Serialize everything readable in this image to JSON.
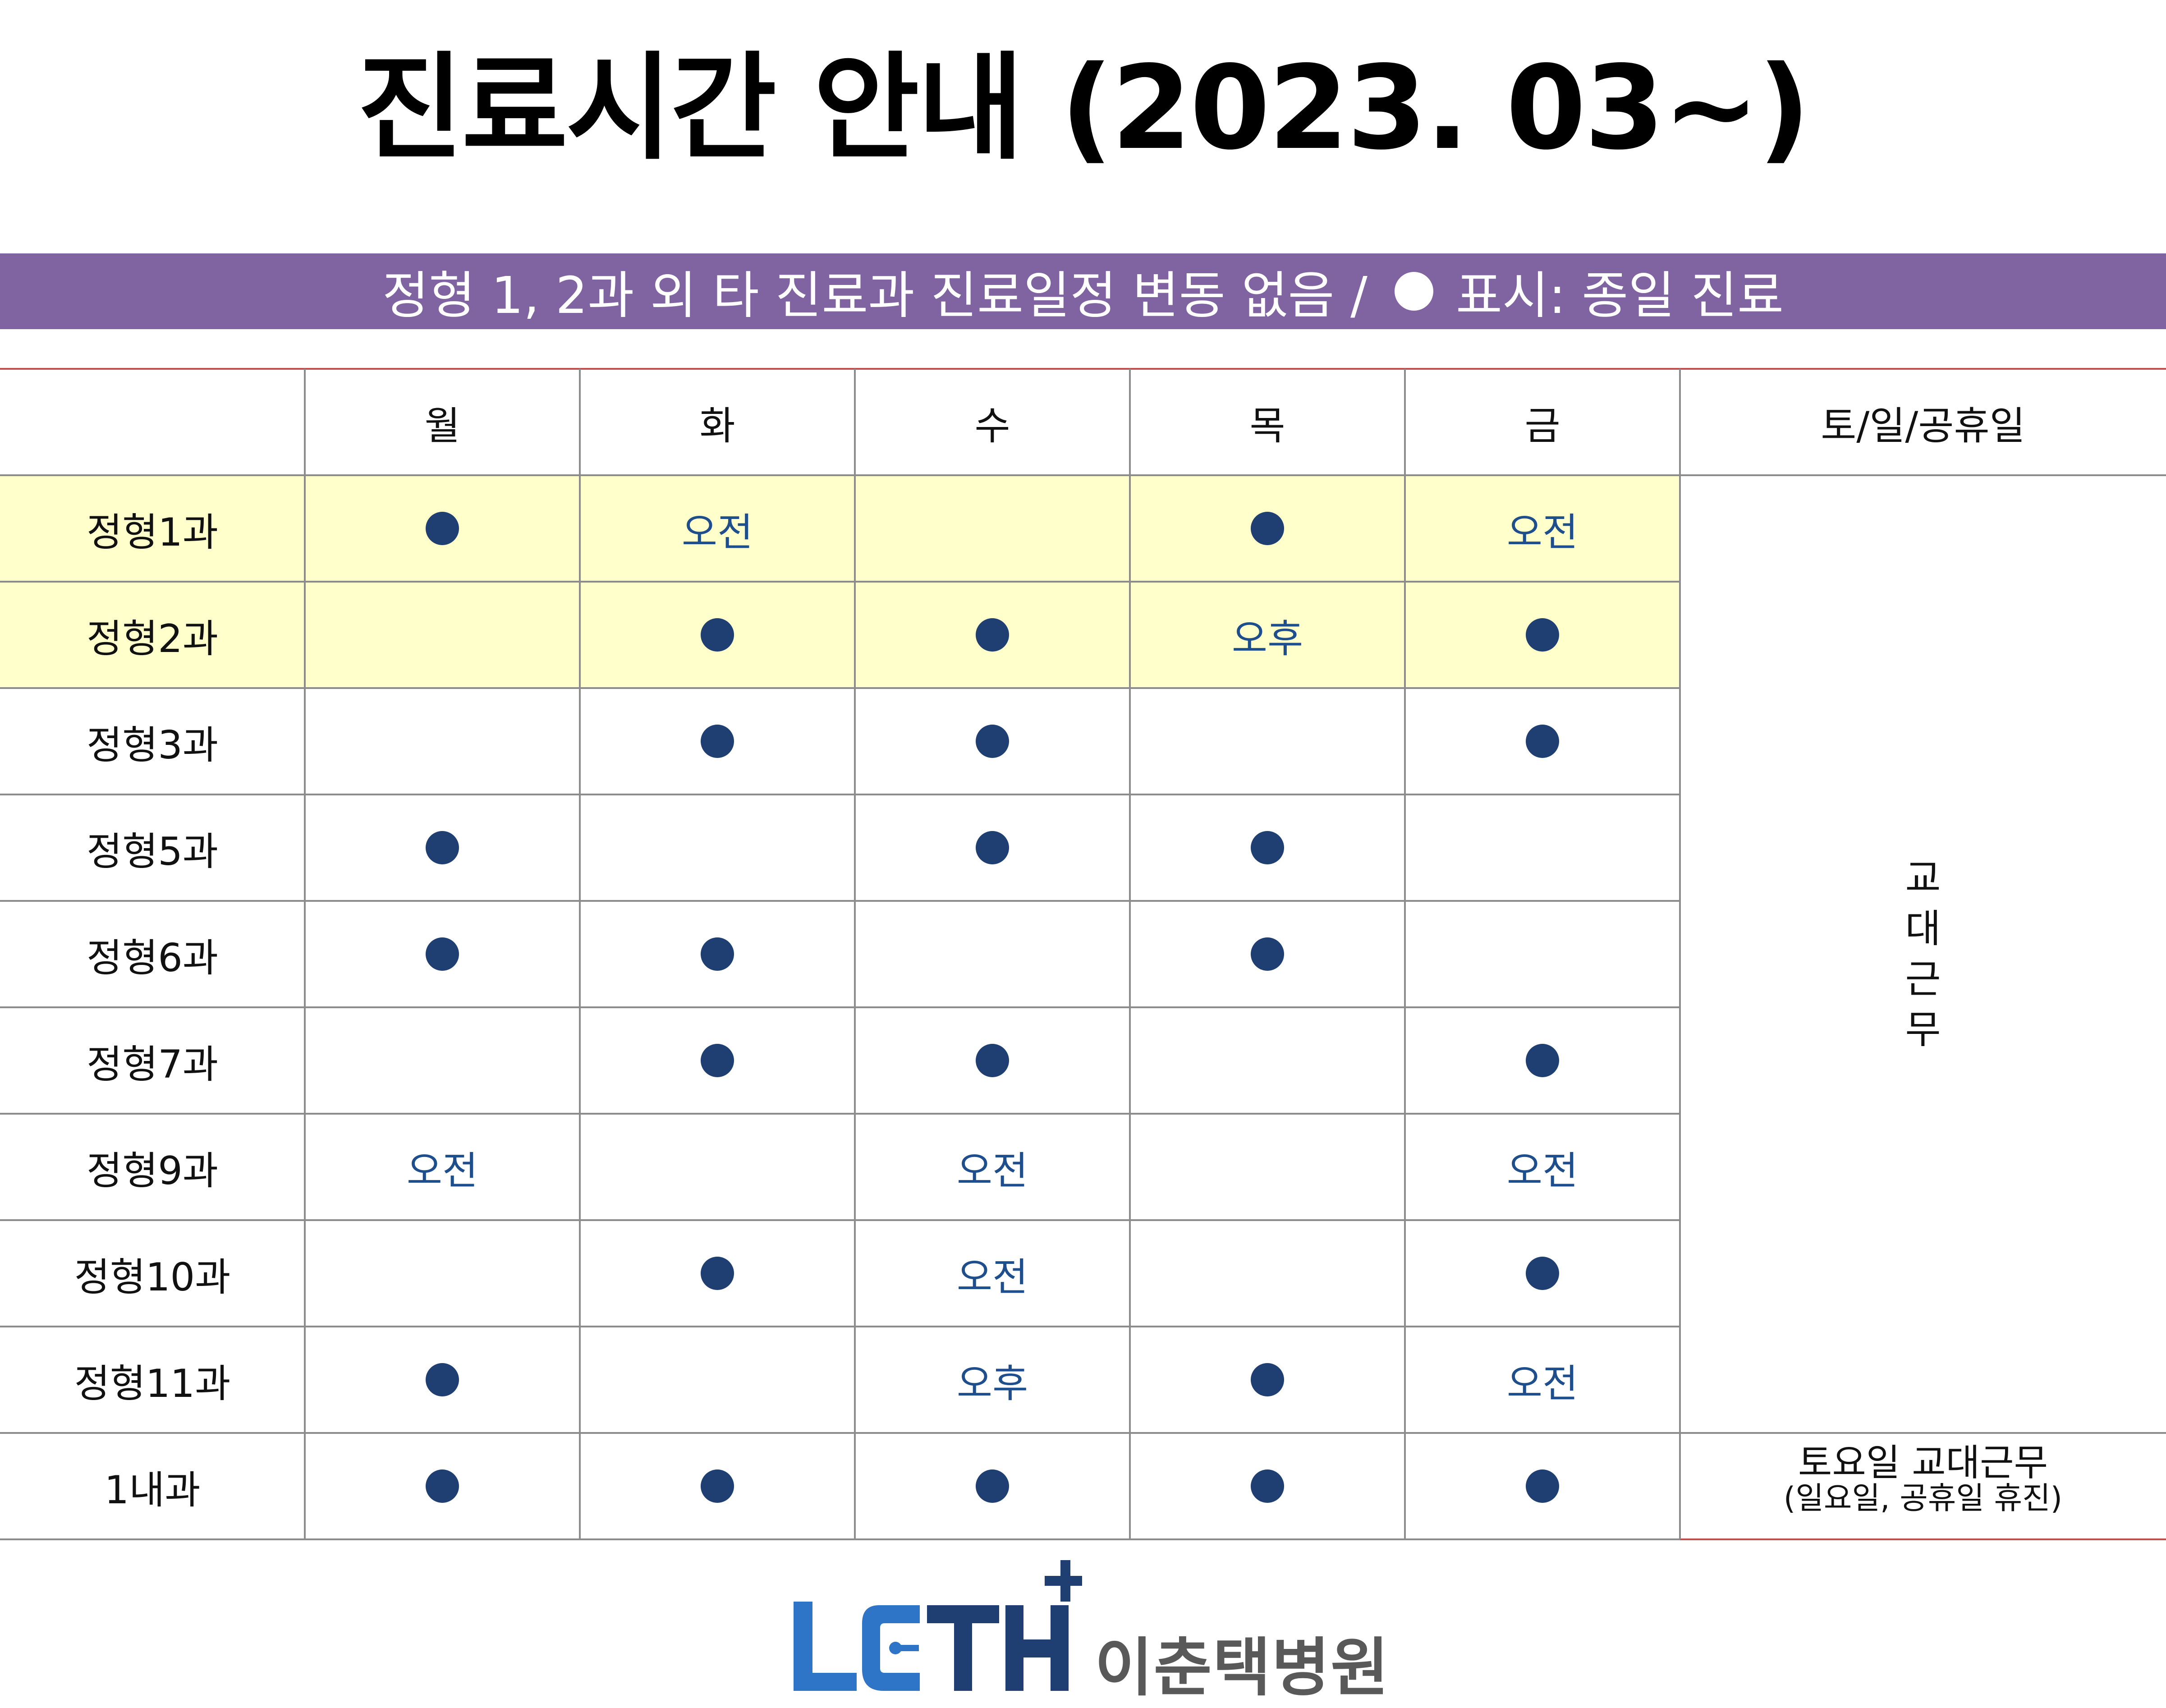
{
  "title": "진료시간 안내 (2023. 03~)",
  "banner": {
    "text_before": "정형 1, 2과 외 타 진료과 진료일정 변동 없음 /",
    "text_after": "표시: 종일 진료",
    "legend_icon": "white-circle"
  },
  "table": {
    "columns": [
      "",
      "월",
      "화",
      "수",
      "목",
      "금",
      "토/일/공휴일"
    ],
    "rows": [
      {
        "dept": "정형1과",
        "days": [
          "dot",
          "오전",
          "",
          "dot",
          "오전"
        ],
        "highlight": true
      },
      {
        "dept": "정형2과",
        "days": [
          "",
          "dot",
          "dot",
          "오후",
          "dot"
        ],
        "highlight": true
      },
      {
        "dept": "정형3과",
        "days": [
          "",
          "dot",
          "dot",
          "",
          "dot"
        ],
        "highlight": false
      },
      {
        "dept": "정형5과",
        "days": [
          "dot",
          "",
          "dot",
          "dot",
          ""
        ],
        "highlight": false
      },
      {
        "dept": "정형6과",
        "days": [
          "dot",
          "dot",
          "",
          "dot",
          ""
        ],
        "highlight": false
      },
      {
        "dept": "정형7과",
        "days": [
          "",
          "dot",
          "dot",
          "",
          "dot"
        ],
        "highlight": false
      },
      {
        "dept": "정형9과",
        "days": [
          "오전",
          "",
          "오전",
          "",
          "오전"
        ],
        "highlight": false
      },
      {
        "dept": "정형10과",
        "days": [
          "",
          "dot",
          "오전",
          "",
          "dot"
        ],
        "highlight": false
      },
      {
        "dept": "정형11과",
        "days": [
          "dot",
          "",
          "오후",
          "dot",
          "오전"
        ],
        "highlight": false
      },
      {
        "dept": "1내과",
        "days": [
          "dot",
          "dot",
          "dot",
          "dot",
          "dot"
        ],
        "highlight": false
      }
    ],
    "weekend_merged_text": [
      "교",
      "대",
      "근",
      "무"
    ],
    "weekend_last_row": {
      "line1": "토요일 교대근무",
      "line2": "(일요일, 공휴일 휴진)"
    }
  },
  "logo": {
    "mark": "LCTH",
    "name": "이춘택병원"
  },
  "colors": {
    "banner_bg": "#8064a2",
    "highlight_row": "#ffffcc",
    "dot": "#1f3f73",
    "ampm_text": "#1f4e8c",
    "accent_line": "#c0504d",
    "logo_blue": "#2e75c8",
    "logo_navy": "#1f3f73"
  }
}
